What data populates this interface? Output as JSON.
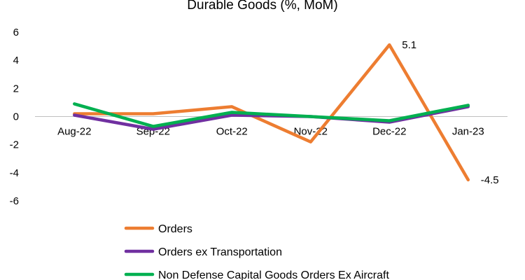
{
  "chart_data": {
    "type": "line",
    "title": "Durable Goods (%, MoM)",
    "categories": [
      "Aug-22",
      "Sep-22",
      "Oct-22",
      "Nov-22",
      "Dec-22",
      "Jan-23"
    ],
    "ylim": [
      -6,
      6
    ],
    "yticks": [
      "6",
      "4",
      "2",
      "0",
      "-2",
      "-4",
      "-6"
    ],
    "grid": false,
    "legend_position": "bottom",
    "series": [
      {
        "name": "Orders",
        "color": "#ed7d31",
        "values": [
          0.2,
          0.2,
          0.7,
          -1.8,
          5.1,
          -4.5
        ]
      },
      {
        "name": "Orders ex Transportation",
        "color": "#7030a0",
        "values": [
          0.1,
          -0.9,
          0.1,
          0.0,
          -0.4,
          0.7
        ]
      },
      {
        "name": "Non Defense Capital Goods Orders Ex Aircraft",
        "color": "#00b050",
        "values": [
          0.9,
          -0.7,
          0.3,
          0.0,
          -0.3,
          0.8
        ]
      }
    ],
    "data_labels": [
      {
        "series": 0,
        "index": 4,
        "text": "5.1"
      },
      {
        "series": 0,
        "index": 5,
        "text": "-4.5"
      }
    ]
  }
}
